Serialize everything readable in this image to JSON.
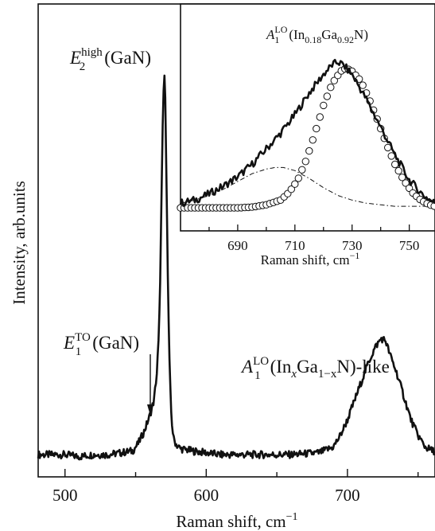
{
  "chart_data": [
    {
      "type": "line",
      "xlabel": "Raman shift, cm",
      "xlabel_sup": "−1",
      "ylabel": "Intensity, arb.units",
      "xlim": [
        481,
        762
      ],
      "ylim": [
        0,
        1
      ],
      "xticks": [
        500,
        600,
        700
      ],
      "series": [
        {
          "x": [
            481,
            490,
            500,
            510,
            520,
            530,
            540,
            548,
            552,
            556,
            560,
            563,
            565,
            566.5,
            567.5,
            568.5,
            569.5,
            570.3,
            571,
            572,
            573,
            574,
            575,
            576,
            577,
            579,
            582,
            590,
            600,
            610,
            620,
            640,
            660,
            680,
            690,
            695,
            700,
            705,
            710,
            715,
            720,
            724,
            727,
            730,
            735,
            740,
            745,
            750,
            755,
            760,
            762
          ],
          "y": [
            0.01,
            0.01,
            0.01,
            0.005,
            0.01,
            0.01,
            0.015,
            0.02,
            0.04,
            0.07,
            0.11,
            0.15,
            0.22,
            0.32,
            0.48,
            0.72,
            0.92,
            1.0,
            0.93,
            0.68,
            0.42,
            0.25,
            0.13,
            0.08,
            0.05,
            0.035,
            0.025,
            0.02,
            0.015,
            0.01,
            0.01,
            0.01,
            0.01,
            0.015,
            0.03,
            0.06,
            0.1,
            0.15,
            0.2,
            0.25,
            0.29,
            0.31,
            0.305,
            0.27,
            0.22,
            0.16,
            0.1,
            0.06,
            0.03,
            0.02,
            0.02
          ]
        }
      ],
      "annotations": [
        {
          "base": "E",
          "sub": "2",
          "sup": "high",
          "tail": "(GaN)"
        },
        {
          "base": "E",
          "sub": "1",
          "sup": "TO",
          "tail": "(GaN)",
          "arrow_to_x": 560
        },
        {
          "base": "A",
          "sub": "1",
          "sup": "LO",
          "tail": "(In",
          "tail_sub": "x",
          "tail2": "Ga",
          "tail2_sub": "1−x",
          "tail3": "N)-like"
        }
      ]
    },
    {
      "type": "line",
      "title_base": "A",
      "title_sub": "1",
      "title_sup": "LO",
      "title_tail": "(In",
      "title_sub2": "0.18",
      "title_tail2": "Ga",
      "title_sub3": "0.92",
      "title_tail3": "N)",
      "xlabel": "Raman shift, cm",
      "xlabel_sup": "−1",
      "xlim": [
        670,
        759
      ],
      "ylim": [
        0,
        1
      ],
      "xticks": [
        690,
        710,
        730,
        750
      ],
      "xtick_labels": [
        "690",
        "",
        "",
        "750"
      ],
      "series": [
        {
          "style": "experiment-solid",
          "x": [
            670,
            675,
            680,
            685,
            690,
            695,
            700,
            705,
            710,
            715,
            720,
            723,
            725,
            727,
            730,
            735,
            740,
            745,
            750,
            755,
            759
          ],
          "y": [
            0.05,
            0.07,
            0.11,
            0.16,
            0.22,
            0.3,
            0.4,
            0.5,
            0.62,
            0.76,
            0.88,
            0.94,
            0.96,
            0.94,
            0.88,
            0.72,
            0.54,
            0.36,
            0.2,
            0.1,
            0.05
          ]
        },
        {
          "style": "fit-circles",
          "x": [
            670,
            675,
            680,
            685,
            690,
            695,
            700,
            705,
            708,
            711,
            714,
            717,
            720,
            723,
            726,
            728,
            730,
            733,
            736,
            739,
            742,
            745,
            748,
            751,
            754,
            757,
            759
          ],
          "y": [
            0.02,
            0.02,
            0.02,
            0.02,
            0.02,
            0.025,
            0.04,
            0.07,
            0.12,
            0.2,
            0.33,
            0.5,
            0.68,
            0.82,
            0.9,
            0.92,
            0.9,
            0.84,
            0.72,
            0.58,
            0.43,
            0.3,
            0.2,
            0.12,
            0.07,
            0.04,
            0.03
          ]
        },
        {
          "style": "component-dashdot",
          "x": [
            670,
            675,
            680,
            685,
            690,
            695,
            700,
            703,
            706,
            710,
            715,
            720,
            725,
            730,
            735,
            740,
            745,
            750,
            755,
            759
          ],
          "y": [
            0.05,
            0.07,
            0.1,
            0.14,
            0.19,
            0.24,
            0.27,
            0.28,
            0.28,
            0.26,
            0.21,
            0.15,
            0.1,
            0.07,
            0.05,
            0.04,
            0.03,
            0.03,
            0.03,
            0.03
          ]
        }
      ]
    }
  ]
}
